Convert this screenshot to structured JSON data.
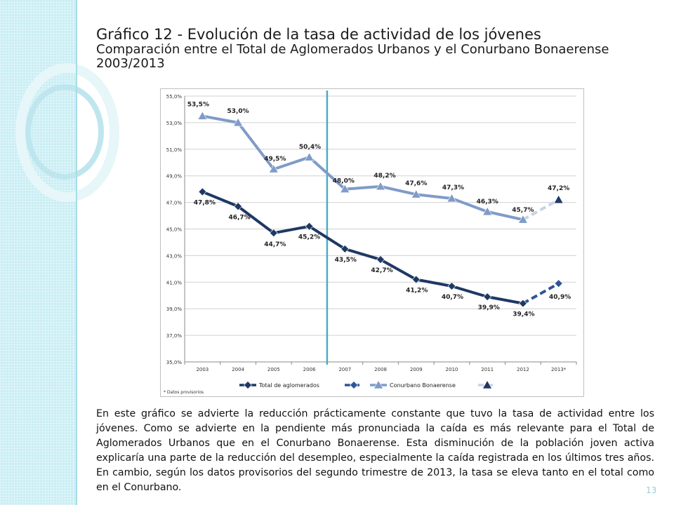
{
  "slide": {
    "title_line1": "Gráfico 12 - Evolución de la tasa de actividad de los jóvenes",
    "title_line2": "Comparación entre el Total de Aglomerados Urbanos y el Conurbano Bonaerense",
    "title_line3": "2003/2013",
    "body": "En este gráfico se advierte la reducción prácticamente constante que tuvo la tasa de actividad entre los jóvenes. Como se advierte en la pendiente más pronunciada la caída es más relevante para el Total de Aglomerados Urbanos que en el Conurbano Bonaerense.  Esta disminución de la población joven activa explicaría una parte de la reducción del desempleo, especialmente la caída registrada en los últimos tres años. En cambio, según los datos provisorios del segundo trimestre de 2013, la tasa se eleva tanto en el total como en el Conurbano.",
    "page_number": "13"
  },
  "chart_data": {
    "type": "line",
    "categories": [
      "2003",
      "2004",
      "2005",
      "2006",
      "2007",
      "2008",
      "2009",
      "2010",
      "2011",
      "2012",
      "2013*"
    ],
    "y_ticks": [
      "35,0%",
      "37,0%",
      "39,0%",
      "41,0%",
      "43,0%",
      "45,0%",
      "47,0%",
      "49,0%",
      "51,0%",
      "53,0%",
      "55,0%"
    ],
    "ylim": [
      35,
      55
    ],
    "grid": true,
    "legend_position": "bottom",
    "footnote": "* Datos provisorios",
    "series": [
      {
        "name": "Total de aglomerados",
        "values": [
          47.8,
          46.7,
          44.7,
          45.2,
          43.5,
          42.7,
          41.2,
          40.7,
          39.9,
          39.4,
          40.9
        ],
        "labels": [
          "47,8%",
          "46,7%",
          "44,7%",
          "45,2%",
          "43,5%",
          "42,7%",
          "41,2%",
          "40,7%",
          "39,9%",
          "39,4%",
          "40,9%"
        ],
        "color": "#1f3864",
        "marker": "diamond",
        "provisional_color": "#2e5597"
      },
      {
        "name": "Conurbano Bonaerense",
        "values": [
          53.5,
          53.0,
          49.5,
          50.4,
          48.0,
          48.2,
          47.6,
          47.3,
          46.3,
          45.7,
          47.2
        ],
        "labels": [
          "53,5%",
          "53,0%",
          "49,5%",
          "50,4%",
          "48,0%",
          "48,2%",
          "47,6%",
          "47,3%",
          "46,3%",
          "45,7%",
          "47,2%"
        ],
        "color": "#7f9bc8",
        "marker": "triangle",
        "provisional_color": "#c5d3ea"
      }
    ]
  }
}
